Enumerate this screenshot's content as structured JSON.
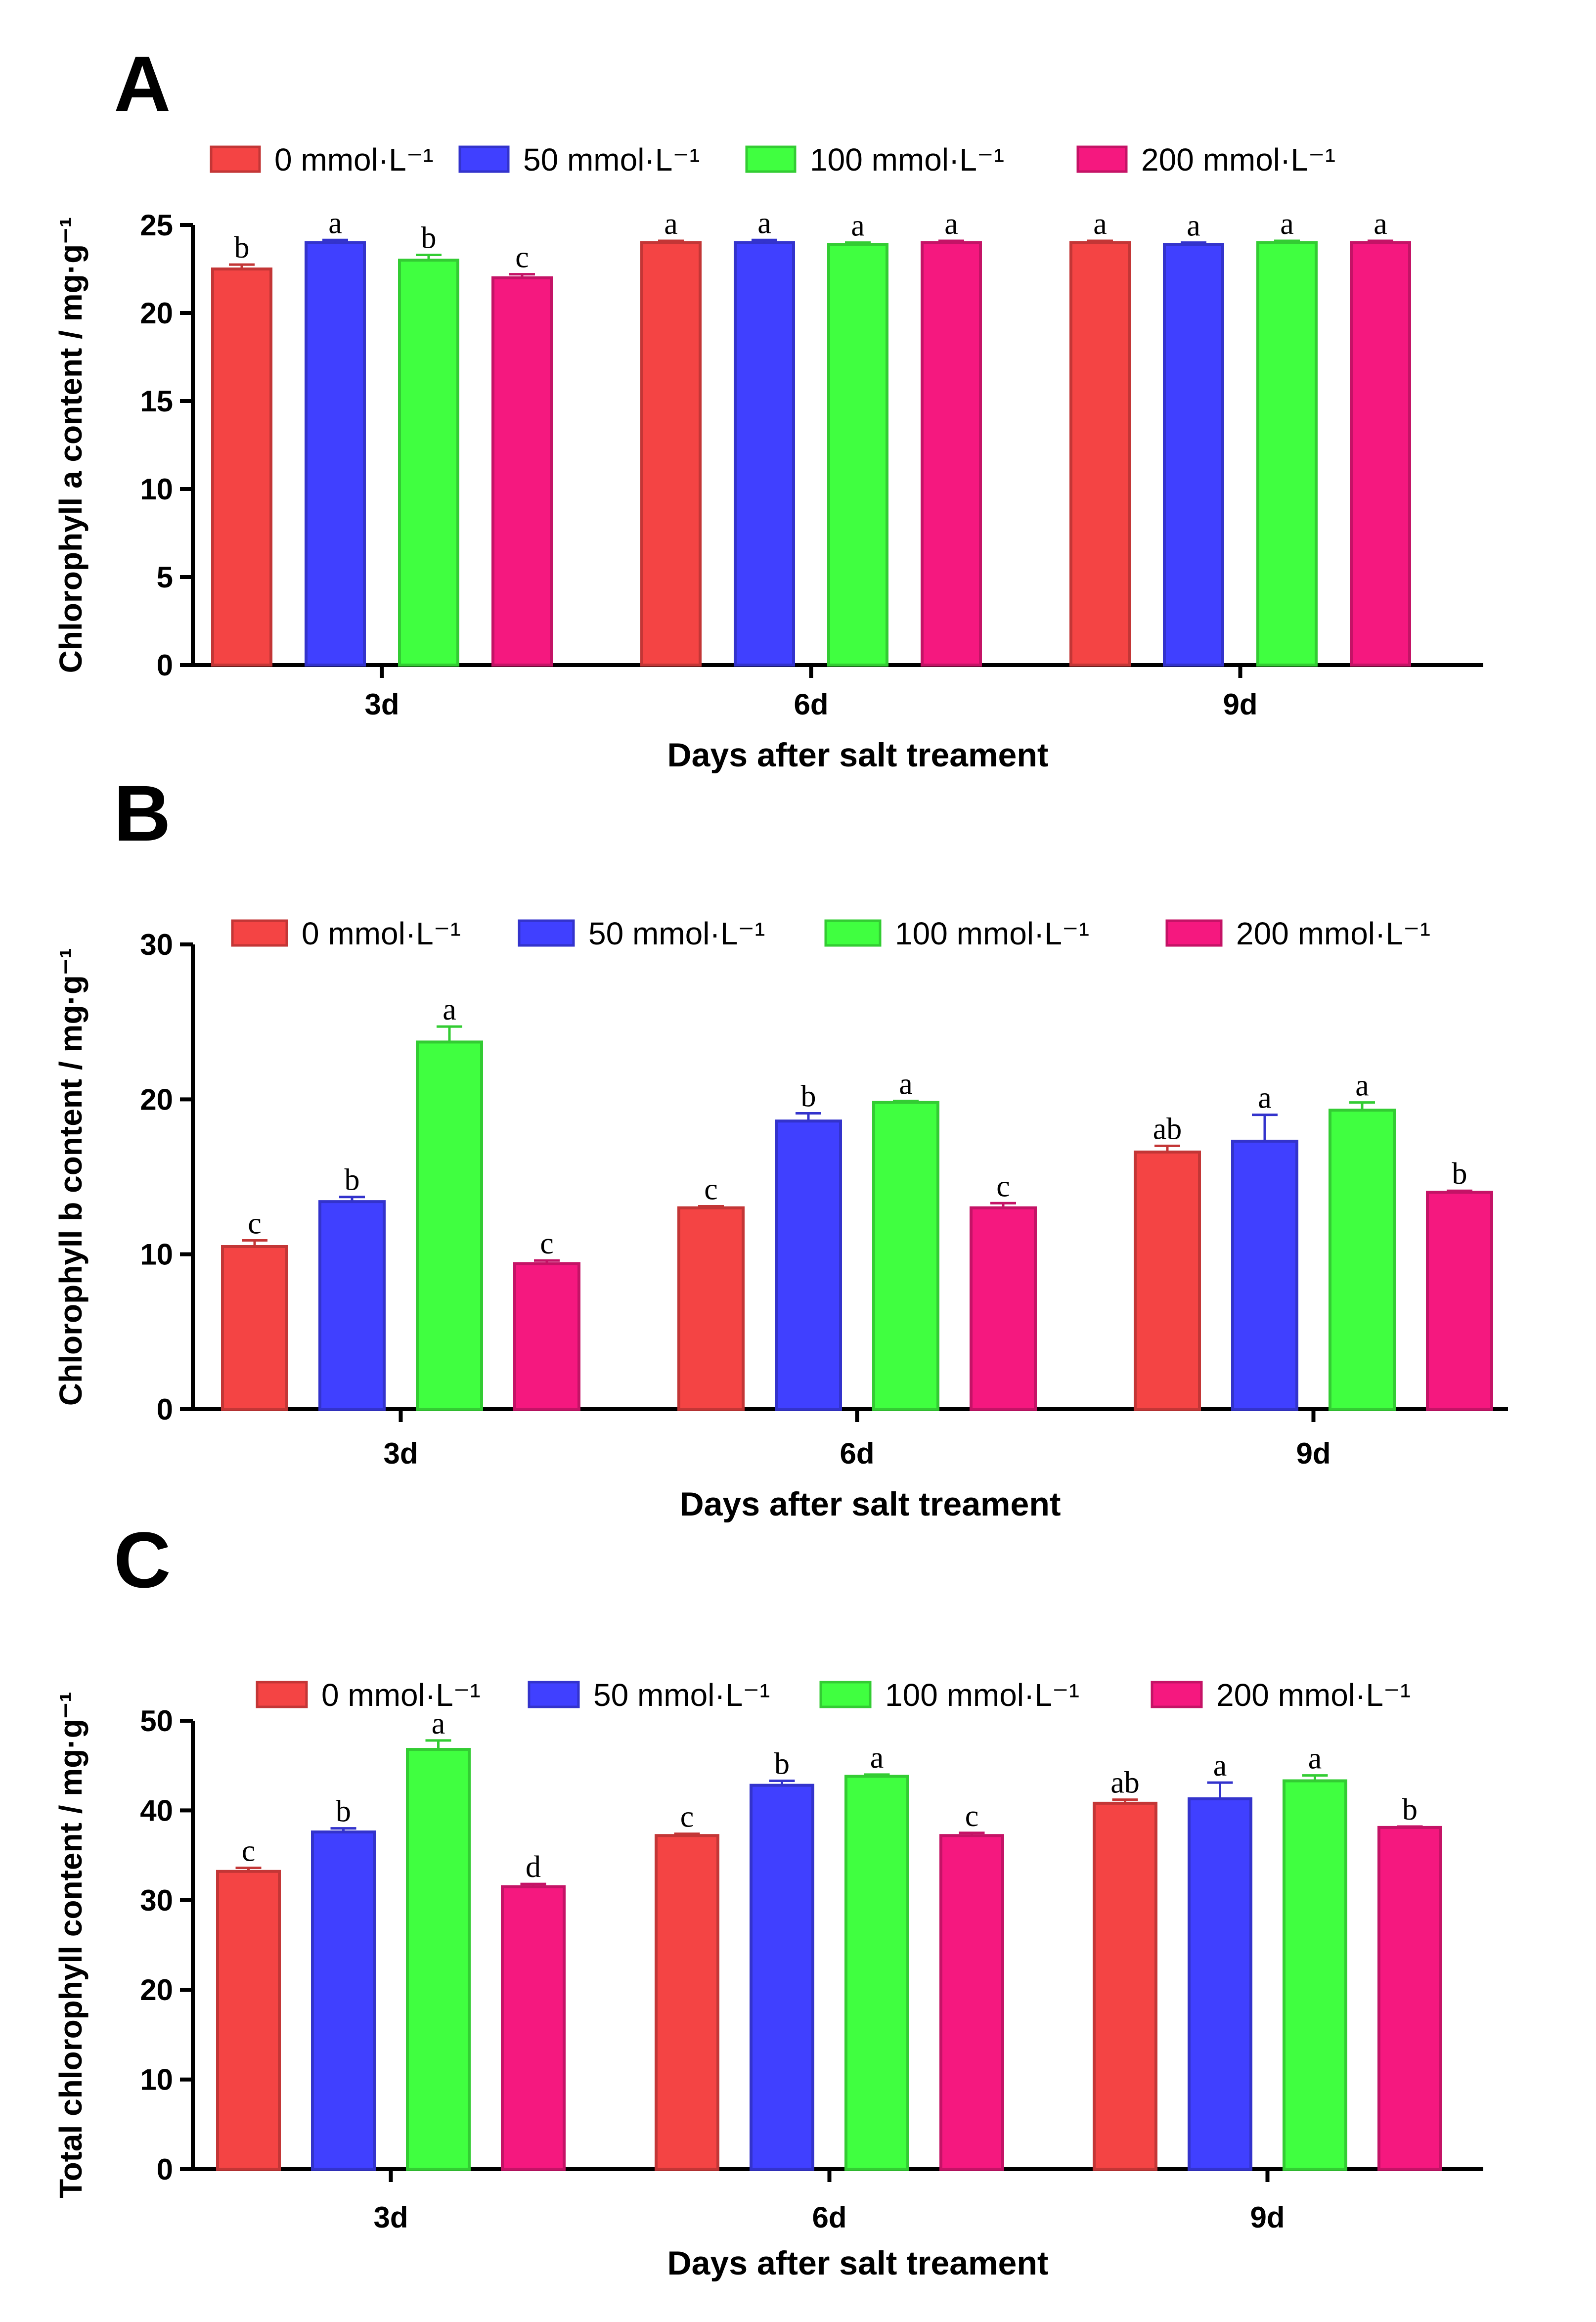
{
  "chart_data": [
    {
      "type": "bar",
      "panel": "A",
      "title": "",
      "xlabel": "Days after salt treament",
      "ylabel": "Chlorophyll a content / mg·g⁻¹",
      "categories": [
        "3d",
        "6d",
        "9d"
      ],
      "ylim": [
        0,
        25
      ],
      "yticks": [
        0,
        5,
        10,
        15,
        20,
        25
      ],
      "series": [
        {
          "name": "0 mmol·L⁻¹",
          "color": "#f44444",
          "values": [
            22.5,
            24.0,
            24.0
          ],
          "errors": [
            0.25,
            0.1,
            0.1
          ],
          "letters": [
            "b",
            "a",
            "a"
          ]
        },
        {
          "name": "50 mmol·L⁻¹",
          "color": "#4040ff",
          "values": [
            24.0,
            24.0,
            23.9
          ],
          "errors": [
            0.15,
            0.15,
            0.1
          ],
          "letters": [
            "a",
            "a",
            "a"
          ]
        },
        {
          "name": "100 mmol·L⁻¹",
          "color": "#40ff40",
          "values": [
            23.0,
            23.9,
            24.0
          ],
          "errors": [
            0.3,
            0.1,
            0.1
          ],
          "letters": [
            "b",
            "a",
            "a"
          ]
        },
        {
          "name": "200 mmol·L⁻¹",
          "color": "#f5187f",
          "values": [
            22.0,
            24.0,
            24.0
          ],
          "errors": [
            0.2,
            0.1,
            0.1
          ],
          "letters": [
            "c",
            "a",
            "a"
          ]
        }
      ]
    },
    {
      "type": "bar",
      "panel": "B",
      "title": "",
      "xlabel": "Days after salt treament",
      "ylabel": "Chlorophyll b content / mg·g⁻¹",
      "categories": [
        "3d",
        "6d",
        "9d"
      ],
      "ylim": [
        0,
        30
      ],
      "yticks": [
        0,
        10,
        20,
        30
      ],
      "series": [
        {
          "name": "0 mmol·L⁻¹",
          "color": "#f44444",
          "values": [
            10.5,
            13.0,
            16.6
          ],
          "errors": [
            0.4,
            0.1,
            0.4
          ],
          "letters": [
            "c",
            "c",
            "ab"
          ]
        },
        {
          "name": "50 mmol·L⁻¹",
          "color": "#4040ff",
          "values": [
            13.4,
            18.6,
            17.3
          ],
          "errors": [
            0.3,
            0.5,
            1.7
          ],
          "letters": [
            "b",
            "b",
            "a"
          ]
        },
        {
          "name": "100 mmol·L⁻¹",
          "color": "#40ff40",
          "values": [
            23.7,
            19.8,
            19.3
          ],
          "errors": [
            1.0,
            0.1,
            0.5
          ],
          "letters": [
            "a",
            "a",
            "a"
          ]
        },
        {
          "name": "200 mmol·L⁻¹",
          "color": "#f5187f",
          "values": [
            9.4,
            13.0,
            14.0
          ],
          "errors": [
            0.2,
            0.3,
            0.1
          ],
          "letters": [
            "c",
            "c",
            "b"
          ]
        }
      ]
    },
    {
      "type": "bar",
      "panel": "C",
      "title": "",
      "xlabel": "Days after salt treament",
      "ylabel": "Total chlorophyll content / mg·g⁻¹",
      "categories": [
        "3d",
        "6d",
        "9d"
      ],
      "ylim": [
        0,
        50
      ],
      "yticks": [
        0,
        10,
        20,
        30,
        40,
        50
      ],
      "series": [
        {
          "name": "0 mmol·L⁻¹",
          "color": "#f44444",
          "values": [
            33.2,
            37.2,
            40.8
          ],
          "errors": [
            0.4,
            0.2,
            0.4
          ],
          "letters": [
            "c",
            "c",
            "ab"
          ]
        },
        {
          "name": "50 mmol·L⁻¹",
          "color": "#4040ff",
          "values": [
            37.6,
            42.8,
            41.3
          ],
          "errors": [
            0.4,
            0.5,
            1.8
          ],
          "letters": [
            "b",
            "b",
            "a"
          ]
        },
        {
          "name": "100 mmol·L⁻¹",
          "color": "#40ff40",
          "values": [
            46.8,
            43.8,
            43.3
          ],
          "errors": [
            1.0,
            0.2,
            0.6
          ],
          "letters": [
            "a",
            "a",
            "a"
          ]
        },
        {
          "name": "200 mmol·L⁻¹",
          "color": "#f5187f",
          "values": [
            31.5,
            37.2,
            38.1
          ],
          "errors": [
            0.3,
            0.3,
            0.1
          ],
          "letters": [
            "d",
            "c",
            "b"
          ]
        }
      ]
    }
  ]
}
